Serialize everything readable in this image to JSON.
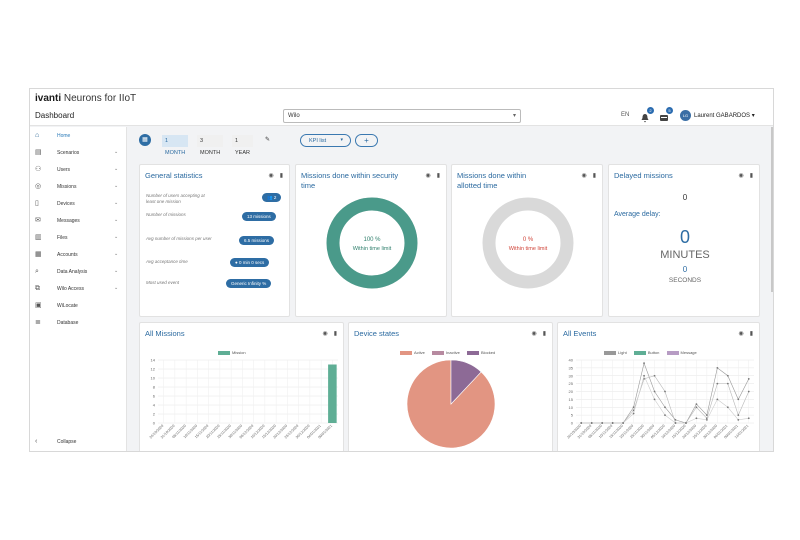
{
  "app": {
    "brand_word": "ivanti",
    "brand_rest": " Neurons for IIoT",
    "page_title": "Dashboard"
  },
  "topbar": {
    "site": "Wilo",
    "lang": "EN",
    "bell_count": "2",
    "inbox_count": "5",
    "avatar_initials": "LG",
    "username": "Laurent  GABARDOS"
  },
  "sidebar": {
    "items": [
      {
        "label": "Home",
        "icon": "home-icon"
      },
      {
        "label": "Scenarios",
        "icon": "book-icon"
      },
      {
        "label": "Users",
        "icon": "users-icon"
      },
      {
        "label": "Missions",
        "icon": "target-icon"
      },
      {
        "label": "Devices",
        "icon": "device-icon"
      },
      {
        "label": "Messages",
        "icon": "mail-icon"
      },
      {
        "label": "Files",
        "icon": "files-icon"
      },
      {
        "label": "Accounts",
        "icon": "building-icon"
      },
      {
        "label": "Data Analysis",
        "icon": "magnifier-icon"
      },
      {
        "label": "Wilo Access",
        "icon": "network-icon"
      },
      {
        "label": "WiLocate",
        "icon": "map-icon"
      },
      {
        "label": "Database",
        "icon": "database-icon"
      }
    ],
    "collapse": "Collapse"
  },
  "toolbar": {
    "periods": [
      "1 MONTH",
      "3 MONTH",
      "1 YEAR"
    ],
    "kpi_list": "KPI list",
    "add": "+"
  },
  "general_stats": {
    "title": "General statistics",
    "rows": [
      {
        "label": "Number of users accepting at least one mission",
        "value": "2"
      },
      {
        "label": "Number of missions",
        "value": "13   missions"
      },
      {
        "label": "Avg number of missions per user",
        "value": "6.5   missions"
      },
      {
        "label": "Avg acceptance time",
        "value": "0 min 0 secs"
      },
      {
        "label": "Most used event",
        "value": "Generic   Infinity %"
      }
    ]
  },
  "missions_security": {
    "title": "Missions done within security time",
    "percent": "100 %",
    "caption": "Within time limit",
    "fraction": 1.0
  },
  "missions_allotted": {
    "title": "Missions done within allotted time",
    "percent": "0 %",
    "caption": "Within time limit",
    "fraction": 0.0
  },
  "delayed": {
    "title": "Delayed missions",
    "count": "0",
    "avg_label": "Average delay:",
    "minutes": "0",
    "minutes_label": "MINUTES",
    "seconds": "0",
    "seconds_label": "SECONDS"
  },
  "colors": {
    "teal": "#4a9a8a",
    "blue": "#2e6da4",
    "salmon": "#e29582",
    "purple": "#8d6a96",
    "grey": "#d9d9d9"
  },
  "chart_data": [
    {
      "type": "bar",
      "title": "All Missions",
      "series": [
        {
          "name": "Mission",
          "color": "#5fae95",
          "values": [
            0,
            0,
            0,
            0,
            0,
            0,
            0,
            0,
            0,
            0,
            0,
            0,
            0,
            0,
            0,
            13
          ]
        }
      ],
      "categories": [
        "26/10/2020",
        "31/10/2020",
        "05/11/2020",
        "10/11/2020",
        "15/11/2020",
        "20/11/2020",
        "25/11/2020",
        "30/11/2020",
        "05/12/2020",
        "10/12/2020",
        "15/12/2020",
        "20/12/2020",
        "25/12/2020",
        "30/12/2020",
        "04/01/2021",
        "09/01/2021"
      ],
      "ylim": [
        0,
        14
      ],
      "yticks": [
        "0",
        "2",
        "4",
        "6",
        "8",
        "10",
        "12",
        "14"
      ]
    },
    {
      "type": "pie",
      "title": "Device states",
      "labels": [
        "Active",
        "Inactive",
        "Blocked"
      ],
      "colors": [
        "#e29582",
        "#b78aa0",
        "#8d6a96"
      ],
      "values": [
        88,
        0,
        12
      ]
    },
    {
      "type": "line",
      "title": "All Events",
      "series": [
        {
          "name": "Light",
          "color": "#999999",
          "values": [
            0,
            0,
            0,
            0,
            0,
            10,
            38,
            20,
            10,
            2,
            0,
            12,
            5,
            35,
            30,
            15,
            28
          ]
        },
        {
          "name": "Button",
          "color": "#b8b8b8",
          "values": [
            0,
            0,
            0,
            0,
            0,
            8,
            28,
            30,
            20,
            0,
            0,
            10,
            3,
            25,
            25,
            5,
            20
          ]
        },
        {
          "name": "Message",
          "color": "#cccccc",
          "values": [
            0,
            0,
            0,
            0,
            0,
            6,
            30,
            15,
            5,
            0,
            0,
            3,
            2,
            15,
            10,
            2,
            3
          ]
        }
      ],
      "categories": [
        "26/10/2020",
        "31/10/2020",
        "05/11/2020",
        "10/11/2020",
        "15/11/2020",
        "20/11/2020",
        "25/11/2020",
        "30/11/2020",
        "05/12/2020",
        "10/12/2020",
        "15/12/2020",
        "20/12/2020",
        "25/12/2020",
        "30/12/2020",
        "04/01/2021",
        "09/01/2021",
        "14/01/2021"
      ],
      "ylim": [
        0,
        40
      ],
      "yticks": [
        "0",
        "5",
        "10",
        "15",
        "20",
        "25",
        "30",
        "35",
        "40"
      ]
    }
  ]
}
